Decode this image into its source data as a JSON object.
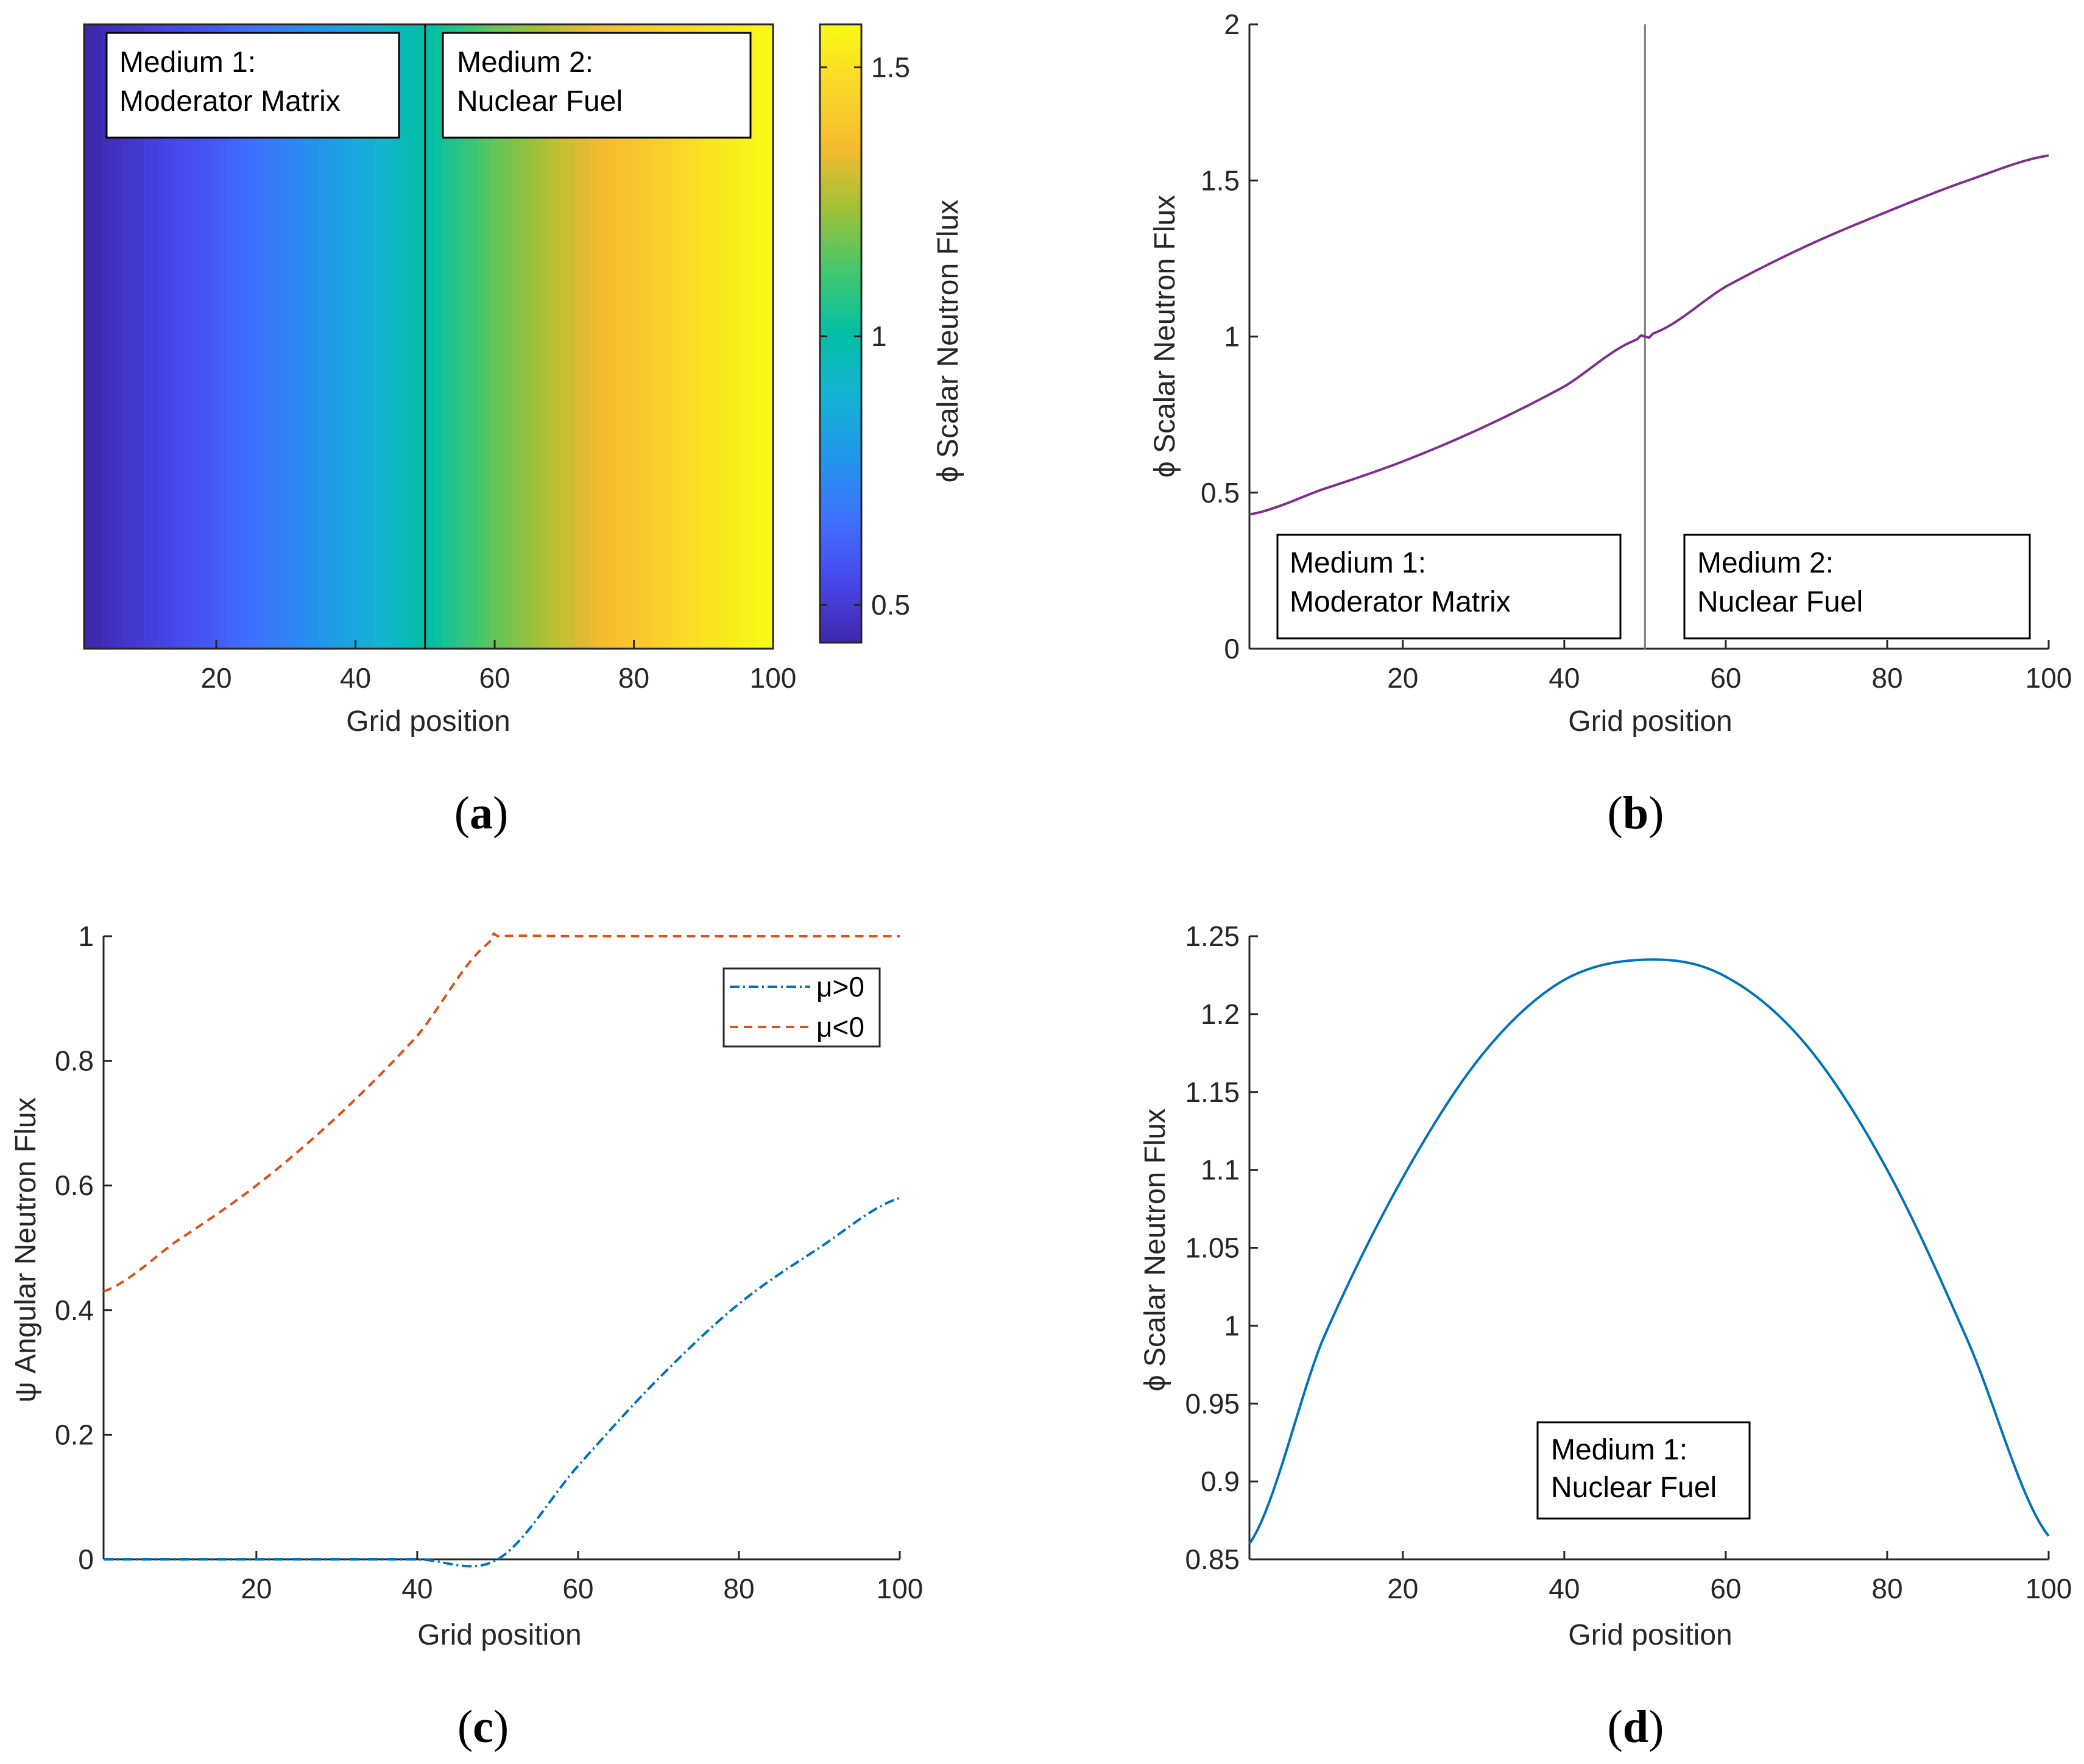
{
  "chart_data": [
    {
      "id": "a",
      "type": "heatmap",
      "panel_label": "a",
      "xlabel": "Grid position",
      "xlim": [
        1,
        100
      ],
      "xticks": [
        20,
        40,
        60,
        80,
        100
      ],
      "colorbar": {
        "label": "ϕ Scalar Neutron Flux",
        "range": [
          0.43,
          1.58
        ],
        "ticks": [
          0.5,
          1,
          1.5
        ],
        "colormap": "parula"
      },
      "interface_x": 50,
      "annotations": [
        {
          "line1": "Medium 1:",
          "line2": "Moderator Matrix"
        },
        {
          "line1": "Medium 2:",
          "line2": "Nuclear Fuel"
        }
      ]
    },
    {
      "id": "b",
      "type": "line",
      "panel_label": "b",
      "xlabel": "Grid position",
      "ylabel": "ϕ Scalar Neutron Flux",
      "xlim": [
        1,
        100
      ],
      "ylim": [
        0,
        2
      ],
      "xticks": [
        20,
        40,
        60,
        80,
        100
      ],
      "yticks": [
        0,
        0.5,
        1,
        1.5,
        2
      ],
      "interface_x": 50,
      "series": [
        {
          "name": "phi",
          "color": "#7E2F8E",
          "x": [
            1,
            10,
            20,
            30,
            40,
            49,
            50,
            51,
            60,
            70,
            80,
            90,
            100
          ],
          "y": [
            0.43,
            0.51,
            0.6,
            0.71,
            0.84,
            0.99,
            1.0,
            1.01,
            1.16,
            1.29,
            1.4,
            1.5,
            1.58
          ]
        }
      ],
      "annotations": [
        {
          "line1": "Medium 1:",
          "line2": "Moderator Matrix"
        },
        {
          "line1": "Medium 2:",
          "line2": "Nuclear Fuel"
        }
      ]
    },
    {
      "id": "c",
      "type": "line",
      "panel_label": "c",
      "xlabel": "Grid position",
      "ylabel": "ψ Angular Neutron Flux",
      "xlim": [
        1,
        100
      ],
      "ylim": [
        0,
        1
      ],
      "xticks": [
        20,
        40,
        60,
        80,
        100
      ],
      "yticks": [
        0,
        0.2,
        0.4,
        0.6,
        0.8,
        1
      ],
      "legend_position": "top-right",
      "series": [
        {
          "name": "μ>0",
          "color": "#0072BD",
          "style": "dash-dot",
          "x": [
            1,
            10,
            20,
            30,
            40,
            50,
            60,
            70,
            80,
            90,
            100
          ],
          "y": [
            0,
            0,
            0,
            0,
            0,
            0,
            0.15,
            0.29,
            0.41,
            0.5,
            0.58
          ]
        },
        {
          "name": "μ<0",
          "color": "#D95319",
          "style": "dashed",
          "x": [
            1,
            10,
            20,
            30,
            40,
            49,
            50,
            60,
            70,
            80,
            90,
            100
          ],
          "y": [
            0.43,
            0.51,
            0.6,
            0.71,
            0.84,
            0.99,
            1,
            1,
            1,
            1,
            1,
            1
          ]
        }
      ]
    },
    {
      "id": "d",
      "type": "line",
      "panel_label": "d",
      "xlabel": "Grid position",
      "ylabel": "ϕ Scalar Neutron Flux",
      "xlim": [
        1,
        100
      ],
      "ylim": [
        0.85,
        1.25
      ],
      "xticks": [
        20,
        40,
        60,
        80,
        100
      ],
      "yticks": [
        0.85,
        0.9,
        0.95,
        1,
        1.05,
        1.1,
        1.15,
        1.2,
        1.25
      ],
      "series": [
        {
          "name": "phi",
          "color": "#0072BD",
          "x": [
            1,
            10,
            20,
            30,
            40,
            50.5,
            60,
            70,
            80,
            90,
            100
          ],
          "y": [
            0.86,
            0.99,
            1.095,
            1.175,
            1.222,
            1.235,
            1.224,
            1.18,
            1.1,
            0.99,
            0.865
          ]
        }
      ],
      "annotations": [
        {
          "line1": "Medium 1:",
          "line2": "Nuclear Fuel"
        }
      ]
    }
  ]
}
